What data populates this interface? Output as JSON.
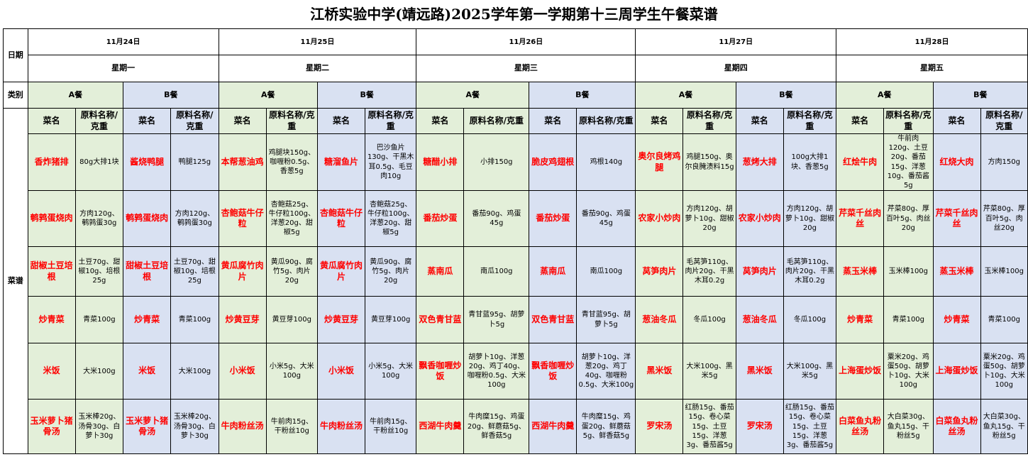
{
  "title": "江桥实验中学(靖远路)2025学年第一学期第十三周学生午餐菜谱",
  "labels": {
    "date": "日期",
    "category": "类别",
    "menu": "菜谱",
    "dish_name": "菜名",
    "ingredients": "原料名称/克重",
    "meal_a": "A餐",
    "meal_b": "B餐"
  },
  "days": [
    {
      "date": "11月24日",
      "weekday": "星期一"
    },
    {
      "date": "11月25日",
      "weekday": "星期二"
    },
    {
      "date": "11月26日",
      "weekday": "星期三"
    },
    {
      "date": "11月27日",
      "weekday": "星期四"
    },
    {
      "date": "11月28日",
      "weekday": "星期五"
    }
  ],
  "menu": [
    {
      "cells": [
        {
          "dish": "香炸猪排",
          "ing": "80g大排1块"
        },
        {
          "dish": "酱烧鸭腿",
          "ing": "鸭腿125g"
        },
        {
          "dish": "本帮葱油鸡",
          "ing": "鸡腿块150g、咖喱粉0.5g、香葱5g"
        },
        {
          "dish": "糖溜鱼片",
          "ing": "巴沙鱼片130g、干黑木耳0.5g、毛豆肉10g"
        },
        {
          "dish": "糖醋小排",
          "ing": "小排150g"
        },
        {
          "dish": "脆皮鸡翅根",
          "ing": "鸡根140g"
        },
        {
          "dish": "奥尔良烤鸡腿",
          "ing": "鸡腿150g、奥尔良腌渍料15g"
        },
        {
          "dish": "葱烤大排",
          "ing": "100g大排1块、香葱5g"
        },
        {
          "dish": "红烩牛肉",
          "ing": "牛前肉120g、土豆20g、番茄15g、洋葱10g、番茄酱5g"
        },
        {
          "dish": "红烧大肉",
          "ing": "方肉150g"
        }
      ]
    },
    {
      "cells": [
        {
          "dish": "鹌鹑蛋烧肉",
          "ing": "方肉120g、鹌鹑蛋30g"
        },
        {
          "dish": "鹌鹑蛋烧肉",
          "ing": "方肉120g、鹌鹑蛋30g"
        },
        {
          "dish": "杏鲍菇牛仔粒",
          "ing": "杏鲍菇25g、牛仔粒100g、洋葱20g、甜椒5g"
        },
        {
          "dish": "杏鲍菇牛仔粒",
          "ing": "杏鲍菇25g、牛仔粒100g、洋葱20g、甜椒5g"
        },
        {
          "dish": "番茄炒蛋",
          "ing": "番茄90g、鸡蛋45g"
        },
        {
          "dish": "番茄炒蛋",
          "ing": "番茄90g、鸡蛋45g"
        },
        {
          "dish": "农家小炒肉",
          "ing": "方肉120g、胡萝卜10g、甜椒20g"
        },
        {
          "dish": "农家小炒肉",
          "ing": "方肉120g、胡萝卜10g、甜椒20g"
        },
        {
          "dish": "芹菜千丝肉丝",
          "ing": "芹菜80g、厚百叶5g、肉丝20g"
        },
        {
          "dish": "芹菜千丝肉丝",
          "ing": "芹菜80g、厚百叶5g、肉丝20g"
        }
      ]
    },
    {
      "cells": [
        {
          "dish": "甜椒土豆培根",
          "ing": "土豆70g、甜椒10g、培根25g"
        },
        {
          "dish": "甜椒土豆培根",
          "ing": "土豆70g、甜椒10g、培根25g"
        },
        {
          "dish": "黄瓜腐竹肉片",
          "ing": "黄瓜90g、腐竹5g、肉片20g"
        },
        {
          "dish": "黄瓜腐竹肉片",
          "ing": "黄瓜90g、腐竹5g、肉片20g"
        },
        {
          "dish": "蒸南瓜",
          "ing": "南瓜100g"
        },
        {
          "dish": "蒸南瓜",
          "ing": "南瓜100g"
        },
        {
          "dish": "莴笋肉片",
          "ing": "毛莴笋110g、肉片20g、干黑木耳0.2g"
        },
        {
          "dish": "莴笋肉片",
          "ing": "毛莴笋110g、肉片20g、干黑木耳0.2g"
        },
        {
          "dish": "蒸玉米棒",
          "ing": "玉米棒100g"
        },
        {
          "dish": "蒸玉米棒",
          "ing": "玉米棒100g"
        }
      ]
    },
    {
      "cells": [
        {
          "dish": "炒青菜",
          "ing": "青菜100g"
        },
        {
          "dish": "炒青菜",
          "ing": "青菜100g"
        },
        {
          "dish": "炒黄豆芽",
          "ing": "黄豆芽100g"
        },
        {
          "dish": "炒黄豆芽",
          "ing": "黄豆芽100g"
        },
        {
          "dish": "双色青甘蓝",
          "ing": "青甘蓝95g、胡萝卜5g"
        },
        {
          "dish": "双色青甘蓝",
          "ing": "青甘蓝95g、胡萝卜5g"
        },
        {
          "dish": "葱油冬瓜",
          "ing": "冬瓜100g"
        },
        {
          "dish": "葱油冬瓜",
          "ing": "冬瓜100g"
        },
        {
          "dish": "炒青菜",
          "ing": "青菜100g"
        },
        {
          "dish": "炒青菜",
          "ing": "青菜100g"
        }
      ]
    },
    {
      "cells": [
        {
          "dish": "米饭",
          "ing": "大米100g"
        },
        {
          "dish": "米饭",
          "ing": "大米100g"
        },
        {
          "dish": "小米饭",
          "ing": "小米5g、大米100g"
        },
        {
          "dish": "小米饭",
          "ing": "小米5g、大米100g"
        },
        {
          "dish": "飘香咖喱炒饭",
          "ing": "胡萝卜10g、洋葱20g、鸡丁40g、咖喱粉0.5g、大米100g"
        },
        {
          "dish": "飘香咖喱炒饭",
          "ing": "胡萝卜10g、洋葱20g、鸡丁40g、咖喱粉0.5g、大米100g"
        },
        {
          "dish": "黑米饭",
          "ing": "大米100g、黑米5g"
        },
        {
          "dish": "黑米饭",
          "ing": "大米100g、黑米5g"
        },
        {
          "dish": "上海蛋炒饭",
          "ing": "粟米20g、鸡蛋50g、胡萝卜10g、大米100g"
        },
        {
          "dish": "上海蛋炒饭",
          "ing": "粟米20g、鸡蛋50g、胡萝卜10g、大米100g"
        }
      ]
    },
    {
      "cells": [
        {
          "dish": "玉米萝卜猪骨汤",
          "ing": "玉米棒20g、汤骨30g、白萝卜30g"
        },
        {
          "dish": "玉米萝卜猪骨汤",
          "ing": "玉米棒20g、汤骨30g、白萝卜30g"
        },
        {
          "dish": "牛肉粉丝汤",
          "ing": "牛前肉15g、干粉丝10g"
        },
        {
          "dish": "牛肉粉丝汤",
          "ing": "牛前肉15g、干粉丝10g"
        },
        {
          "dish": "西湖牛肉羹",
          "ing": "牛肉糜15g、鸡蛋20g、鲜蘑菇5g、鲜香菇5g"
        },
        {
          "dish": "西湖牛肉羹",
          "ing": "牛肉糜15g、鸡蛋20g、鲜蘑菇5g、鲜香菇5g"
        },
        {
          "dish": "罗宋汤",
          "ing": "红肠15g、番茄15g、卷心菜15g、土豆15g、洋葱3g、番茄酱5g"
        },
        {
          "dish": "罗宋汤",
          "ing": "红肠15g、番茄15g、卷心菜15g、土豆15g、洋葱3g、番茄酱5g"
        },
        {
          "dish": "白菜鱼丸粉丝汤",
          "ing": "大白菜30g、鱼丸15g、干粉丝5g"
        },
        {
          "dish": "白菜鱼丸粉丝汤",
          "ing": "大白菜30g、鱼丸15g、干粉丝5g"
        }
      ]
    }
  ]
}
